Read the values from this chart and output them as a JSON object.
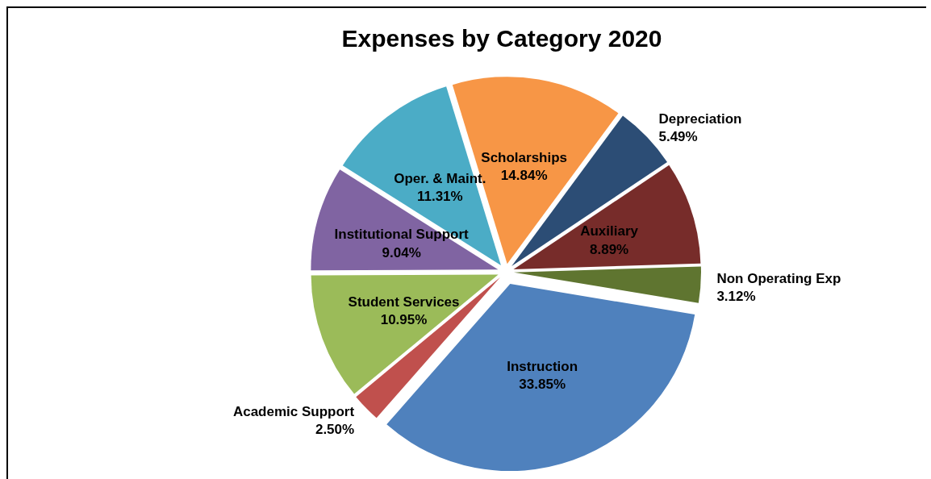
{
  "chart_data": {
    "type": "pie",
    "title": "Expenses by Category 2020",
    "categories": [
      "Scholarships",
      "Depreciation",
      "Auxiliary",
      "Non Operating Exp",
      "Instruction",
      "Academic Support",
      "Student Services",
      "Institutional Support",
      "Oper. & Maint."
    ],
    "values": [
      14.84,
      5.49,
      8.89,
      3.12,
      33.85,
      2.5,
      10.95,
      9.04,
      11.31
    ],
    "value_labels": [
      "14.84%",
      "5.49%",
      "8.89%",
      "3.12%",
      "33.85%",
      "2.50%",
      "10.95%",
      "9.04%",
      "11.31%"
    ],
    "colors": [
      "#f79646",
      "#2c4d75",
      "#772c2a",
      "#5f7530",
      "#4f81bd",
      "#c0504d",
      "#9bbb59",
      "#8064a2",
      "#4bacc6"
    ],
    "legend": false
  }
}
